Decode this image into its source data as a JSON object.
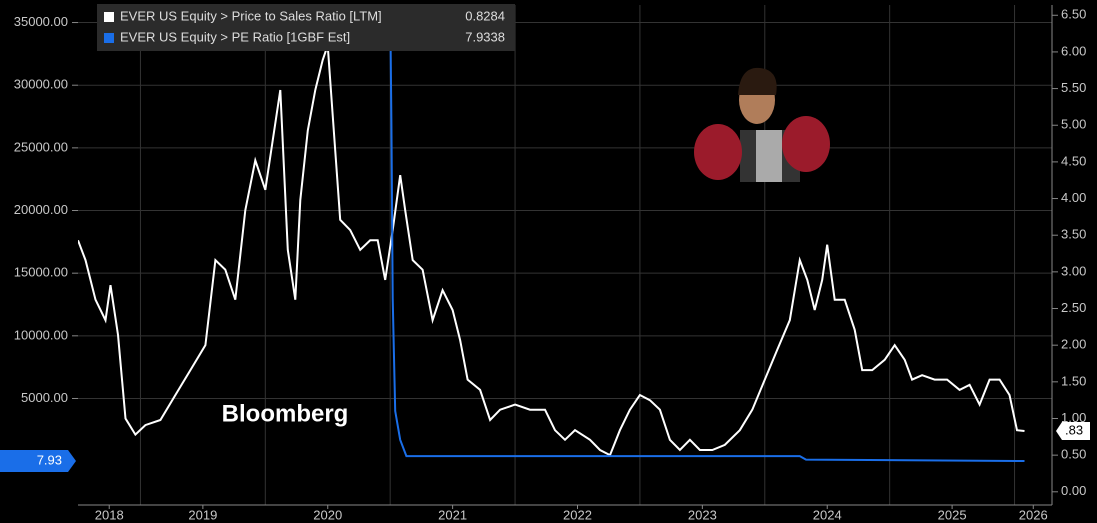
{
  "chart_data": {
    "type": "line",
    "watermark": "Bloomberg",
    "xlim": [
      2018.5,
      2026.3
    ],
    "xticks": [
      {
        "value": 2018.75,
        "label": "2018"
      },
      {
        "value": 2019.5,
        "label": "2019"
      },
      {
        "value": 2020.5,
        "label": "2020"
      },
      {
        "value": 2021.5,
        "label": "2021"
      },
      {
        "value": 2022.5,
        "label": "2022"
      },
      {
        "value": 2023.5,
        "label": "2023"
      },
      {
        "value": 2024.5,
        "label": "2024"
      },
      {
        "value": 2025.5,
        "label": "2025"
      },
      {
        "value": 2026.15,
        "label": "2026"
      }
    ],
    "xgrid": [
      2019,
      2020,
      2021,
      2022,
      2023,
      2024,
      2025,
      2026
    ],
    "ylim": [
      -3500,
      36400
    ],
    "yticks": [
      {
        "value": 5000,
        "label": "5000.00"
      },
      {
        "value": 10000,
        "label": "10000.00"
      },
      {
        "value": 15000,
        "label": "15000.00"
      },
      {
        "value": 20000,
        "label": "20000.00"
      },
      {
        "value": 25000,
        "label": "25000.00"
      },
      {
        "value": 30000,
        "label": "30000.00"
      },
      {
        "value": 35000,
        "label": "35000.00"
      }
    ],
    "y2lim": [
      -0.18,
      6.64
    ],
    "y2ticks": [
      {
        "value": 0,
        "label": "0.00"
      },
      {
        "value": 0.5,
        "label": "0.50"
      },
      {
        "value": 1,
        "label": "1.00"
      },
      {
        "value": 1.5,
        "label": "1.50"
      },
      {
        "value": 2,
        "label": "2.00"
      },
      {
        "value": 2.5,
        "label": "2.50"
      },
      {
        "value": 3,
        "label": "3.00"
      },
      {
        "value": 3.5,
        "label": "3.50"
      },
      {
        "value": 4,
        "label": "4.00"
      },
      {
        "value": 4.5,
        "label": "4.50"
      },
      {
        "value": 5,
        "label": "5.00"
      },
      {
        "value": 5.5,
        "label": "5.50"
      },
      {
        "value": 6,
        "label": "6.00"
      },
      {
        "value": 6.5,
        "label": "6.50"
      }
    ],
    "grid": true,
    "series": [
      {
        "name": "EVER US Equity > Price to Sales Ratio [LTM]",
        "legend_value": "0.8284",
        "last_label": ".83",
        "color": "#ffffff",
        "axis": "y2",
        "x": [
          2018.5,
          2018.56,
          2018.64,
          2018.72,
          2018.76,
          2018.82,
          2018.88,
          2018.96,
          2019.04,
          2019.16,
          2019.28,
          2019.4,
          2019.52,
          2019.6,
          2019.68,
          2019.76,
          2019.84,
          2019.92,
          2020.0,
          2020.06,
          2020.12,
          2020.18,
          2020.24,
          2020.28,
          2020.34,
          2020.4,
          2020.46,
          2020.5,
          2020.56,
          2020.6,
          2020.68,
          2020.76,
          2020.84,
          2020.9,
          2020.96,
          2021.02,
          2021.08,
          2021.12,
          2021.18,
          2021.26,
          2021.34,
          2021.42,
          2021.5,
          2021.56,
          2021.62,
          2021.72,
          2021.8,
          2021.88,
          2022.0,
          2022.12,
          2022.24,
          2022.32,
          2022.4,
          2022.48,
          2022.6,
          2022.68,
          2022.76,
          2022.84,
          2022.92,
          2023.0,
          2023.08,
          2023.16,
          2023.24,
          2023.32,
          2023.4,
          2023.48,
          2023.58,
          2023.68,
          2023.8,
          2023.9,
          2024.0,
          2024.1,
          2024.2,
          2024.28,
          2024.34,
          2024.4,
          2024.46,
          2024.5,
          2024.56,
          2024.64,
          2024.72,
          2024.78,
          2024.86,
          2024.96,
          2025.04,
          2025.12,
          2025.18,
          2025.26,
          2025.36,
          2025.46,
          2025.56,
          2025.64,
          2025.72,
          2025.8,
          2025.88,
          2025.96,
          2026.02,
          2026.08
        ],
        "values": [
          3.43,
          3.16,
          2.62,
          2.34,
          2.82,
          2.14,
          1.0,
          0.78,
          0.91,
          0.98,
          1.32,
          1.66,
          2.0,
          3.16,
          3.03,
          2.62,
          3.84,
          4.52,
          4.12,
          4.8,
          5.48,
          3.3,
          2.62,
          3.98,
          4.93,
          5.48,
          5.89,
          6.09,
          4.66,
          3.71,
          3.57,
          3.3,
          3.43,
          3.43,
          2.89,
          3.57,
          4.32,
          3.84,
          3.16,
          3.03,
          2.34,
          2.75,
          2.48,
          2.07,
          1.53,
          1.39,
          0.98,
          1.12,
          1.19,
          1.12,
          1.12,
          0.84,
          0.71,
          0.84,
          0.71,
          0.57,
          0.5,
          0.84,
          1.12,
          1.32,
          1.25,
          1.12,
          0.71,
          0.57,
          0.71,
          0.57,
          0.57,
          0.64,
          0.84,
          1.12,
          1.53,
          1.94,
          2.34,
          3.16,
          2.89,
          2.48,
          2.89,
          3.37,
          2.62,
          2.62,
          2.21,
          1.66,
          1.66,
          1.8,
          2.0,
          1.8,
          1.53,
          1.59,
          1.53,
          1.53,
          1.39,
          1.46,
          1.19,
          1.53,
          1.53,
          1.32,
          0.84,
          0.83
        ]
      },
      {
        "name": "EVER US Equity > PE Ratio [1GBF Est]",
        "legend_value": "7.9338",
        "last_label": "7.93",
        "color": "#1a6ee8",
        "x": [
          2021.0,
          2021.01,
          2021.02,
          2021.04,
          2021.08,
          2021.13,
          2024.28,
          2024.33,
          2026.08
        ],
        "values": [
          36400,
          27000,
          13000,
          4000,
          1700,
          400,
          400,
          120,
          7.93
        ]
      }
    ]
  }
}
